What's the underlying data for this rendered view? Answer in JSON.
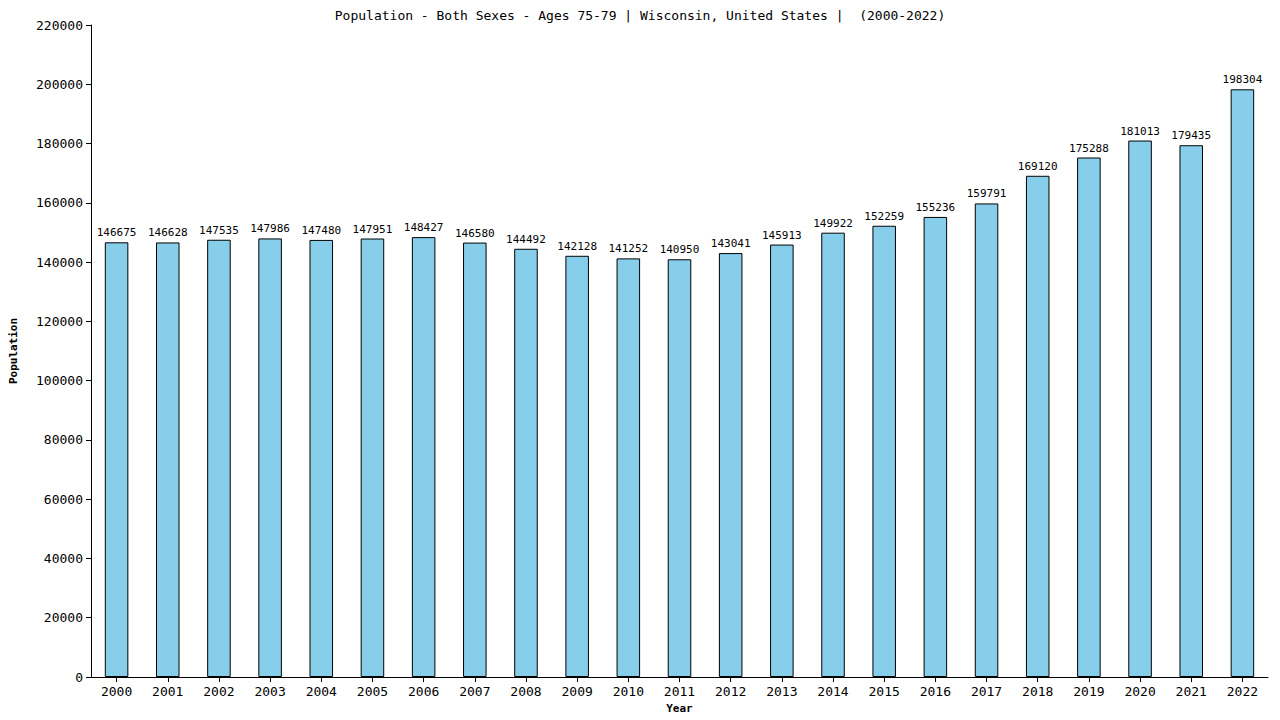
{
  "chart_data": {
    "type": "bar",
    "title": "Population - Both Sexes - Ages 75-79 | Wisconsin, United States |  (2000-2022)",
    "x_label": "Year",
    "y_label": "Population",
    "categories": [
      "2000",
      "2001",
      "2002",
      "2003",
      "2004",
      "2005",
      "2006",
      "2007",
      "2008",
      "2009",
      "2010",
      "2011",
      "2012",
      "2013",
      "2014",
      "2015",
      "2016",
      "2017",
      "2018",
      "2019",
      "2020",
      "2021",
      "2022"
    ],
    "values": [
      146675,
      146628,
      147535,
      147986,
      147480,
      147951,
      148427,
      146580,
      144492,
      142128,
      141252,
      140950,
      143041,
      145913,
      149922,
      152259,
      155236,
      159791,
      169120,
      175288,
      181013,
      179435,
      198304
    ],
    "color": "#87ceeb",
    "ylim": [
      0,
      220000
    ],
    "yticks": [
      0,
      20000,
      40000,
      60000,
      80000,
      100000,
      120000,
      140000,
      160000,
      180000,
      200000,
      220000
    ],
    "grid": false,
    "data_labels": true
  }
}
